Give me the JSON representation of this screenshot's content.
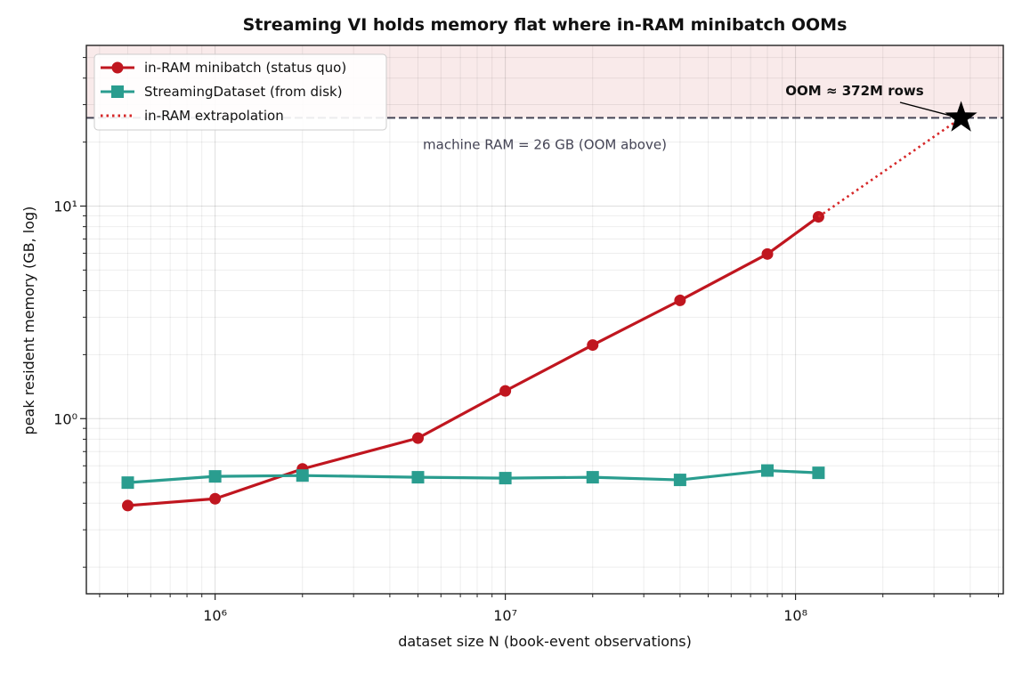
{
  "chart_data": {
    "type": "line",
    "title": "Streaming VI holds memory flat where in-RAM minibatch OOMs",
    "x_label": "dataset size N  (book-event observations)",
    "y_label": "peak resident memory  (GB, log)",
    "x_scale": "log",
    "y_scale": "log",
    "grid": true,
    "legend": "upper left",
    "xlim": [
      360000,
      520000000
    ],
    "ylim": [
      0.15,
      57
    ],
    "xticks": [
      {
        "value": 1000000,
        "label": "10⁶"
      },
      {
        "value": 10000000,
        "label": "10⁷"
      },
      {
        "value": 100000000,
        "label": "10⁸"
      }
    ],
    "yticks": [
      {
        "value": 1,
        "label": "10⁰"
      },
      {
        "value": 10,
        "label": "10¹"
      }
    ],
    "xminorticks": [
      400000,
      500000,
      600000,
      700000,
      800000,
      900000,
      2000000,
      3000000,
      4000000,
      5000000,
      6000000,
      7000000,
      8000000,
      9000000,
      20000000,
      30000000,
      40000000,
      50000000,
      60000000,
      70000000,
      80000000,
      90000000,
      200000000,
      300000000,
      400000000,
      500000000
    ],
    "yminorticks": [
      0.2,
      0.3,
      0.4,
      0.5,
      0.6,
      0.7,
      0.8,
      0.9,
      2,
      3,
      4,
      5,
      6,
      7,
      8,
      9,
      20,
      30,
      40,
      50
    ],
    "x": [
      500000,
      1000000,
      2000000,
      5000000,
      10000000,
      20000000,
      40000000,
      80000000,
      120000000
    ],
    "series": [
      {
        "name": "in-RAM minibatch (status quo)",
        "color": "#c0161f",
        "marker": "circle",
        "style": "solid",
        "values": [
          0.39,
          0.42,
          0.58,
          0.81,
          1.35,
          2.22,
          3.6,
          5.95,
          8.9
        ]
      },
      {
        "name": "StreamingDataset (from disk)",
        "color": "#2a9d8f",
        "marker": "square",
        "style": "solid",
        "values": [
          0.5,
          0.535,
          0.54,
          0.53,
          0.525,
          0.53,
          0.515,
          0.57,
          0.556
        ]
      },
      {
        "name": "in-RAM extrapolation",
        "color": "#d62728",
        "marker": "none",
        "style": "dotted",
        "x": [
          120000000,
          372000000
        ],
        "values": [
          8.9,
          26
        ]
      }
    ],
    "threshold": {
      "value": 26,
      "label": "machine RAM = 26 GB  (OOM above)",
      "color": "#444455",
      "band_color": "#f9eaea"
    },
    "annotation": {
      "text": "OOM ≈ 372M rows",
      "x": 372000000,
      "y": 26
    }
  }
}
